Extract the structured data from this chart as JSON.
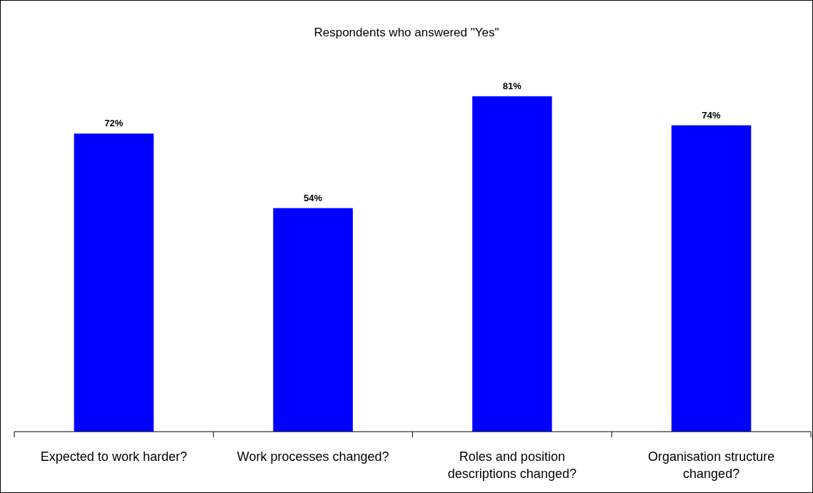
{
  "chart_data": {
    "type": "bar",
    "title": "Respondents who answered \"Yes\"",
    "categories": [
      "Expected to work harder?",
      "Work processes changed?",
      "Roles and position descriptions changed?",
      "Organisation structure changed?"
    ],
    "values": [
      72,
      54,
      81,
      74
    ],
    "color": "#0000ff",
    "value_labels": [
      "72%",
      "54%",
      "81%",
      "74%"
    ],
    "tick_labels": "x"
  }
}
